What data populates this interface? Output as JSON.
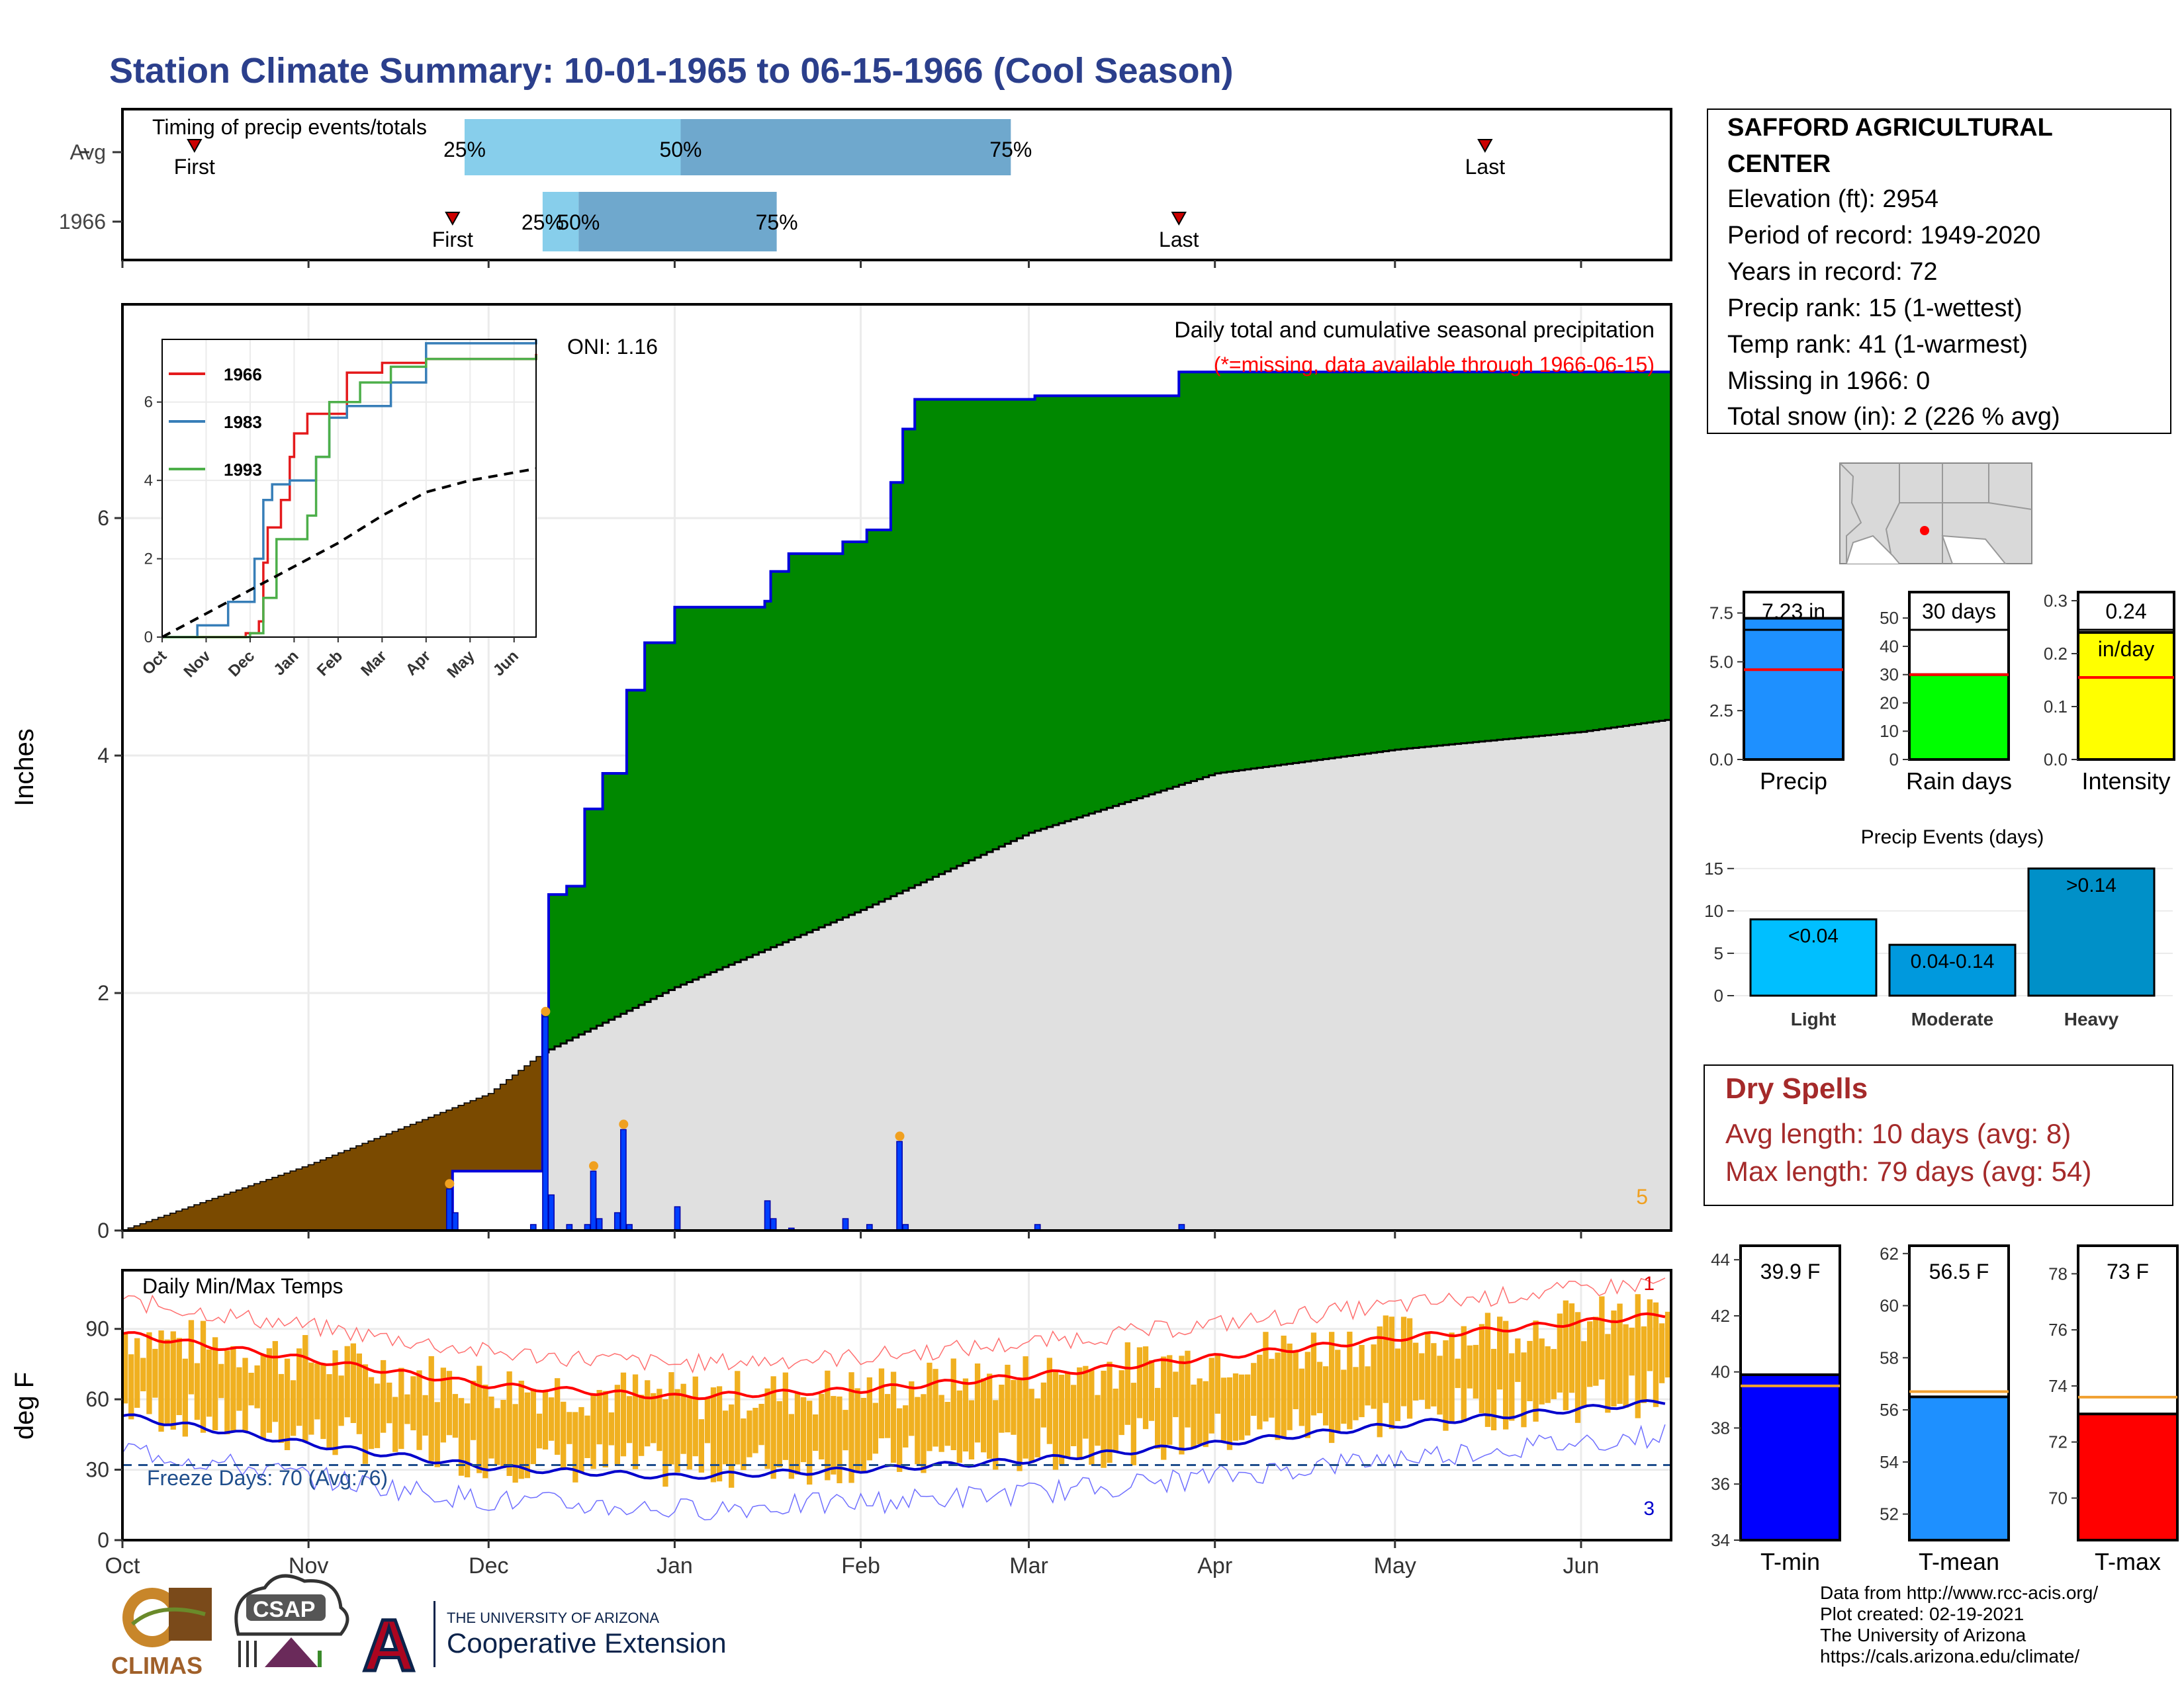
{
  "title": "Station Climate Summary: 10-01-1965 to 06-15-1966 (Cool Season)",
  "colors": {
    "title": "#2b3f8c",
    "green": "#008800",
    "brown": "#7a4a00",
    "gray": "#e0e0e0",
    "blue_line": "#0000dd",
    "light_blue": "#87ceeb",
    "mid_blue": "#6fa8cd",
    "orange": "#f0b020",
    "red": "#ff0000",
    "dry_red": "#a52a2a"
  },
  "timing": {
    "title": "Timing of precip events/totals",
    "rows": [
      {
        "label": "Avg",
        "first_label": "First",
        "last_label": "Last",
        "p25": "25%",
        "p50": "50%",
        "p75": "75%"
      },
      {
        "label": "1966",
        "first_label": "First",
        "last_label": "Last",
        "p25": "25%",
        "p50": "50%",
        "p75": "75%"
      }
    ]
  },
  "precip_panel": {
    "header": "Daily total and cumulative seasonal precipitation",
    "missing_note": "(*=missing, data available through 1966-06-15)",
    "oni": "ONI: 1.16",
    "ylabel": "Inches",
    "corner_count": "5",
    "yticks": [
      "0",
      "2",
      "4",
      "6"
    ]
  },
  "temp_panel": {
    "title": "Daily Min/Max Temps",
    "ylabel": "deg F",
    "freeze": "Freeze Days: 70 (Avg:76)",
    "count_top": "1",
    "count_bottom": "3",
    "yticks": [
      "0",
      "30",
      "60",
      "90"
    ]
  },
  "months": [
    "Oct",
    "Nov",
    "Dec",
    "Jan",
    "Feb",
    "Mar",
    "Apr",
    "May",
    "Jun"
  ],
  "station": {
    "name": "SAFFORD AGRICULTURAL CENTER",
    "elevation": "Elevation (ft): 2954",
    "period": "Period of record: 1949-2020",
    "years": "Years in record: 72",
    "precip_rank": "Precip rank: 15 (1-wettest)",
    "temp_rank": "Temp rank: 41 (1-warmest)",
    "missing": "Missing in 1966: 0",
    "snow": "Total snow (in): 2 (226 % avg)"
  },
  "inset": {
    "legend": [
      "1966",
      "1983",
      "1993"
    ],
    "months": [
      "Oct",
      "Nov",
      "Dec",
      "Jan",
      "Feb",
      "Mar",
      "Apr",
      "May",
      "Jun"
    ],
    "yticks": [
      "0",
      "2",
      "4",
      "6"
    ]
  },
  "bars": {
    "precip": {
      "label": "Precip",
      "value_text": "7.23 in",
      "yticks": [
        "0.0",
        "2.5",
        "5.0",
        "7.5"
      ]
    },
    "raindays": {
      "label": "Rain days",
      "value_text": "30 days",
      "yticks": [
        "0",
        "10",
        "20",
        "30",
        "40",
        "50"
      ]
    },
    "intensity": {
      "label": "Intensity",
      "value_text": "0.24",
      "unit_text": "in/day",
      "yticks": [
        "0.0",
        "0.1",
        "0.2",
        "0.3"
      ]
    }
  },
  "events": {
    "title": "Precip Events (days)",
    "categories": [
      "Light",
      "Moderate",
      "Heavy"
    ],
    "bar_labels": [
      "<0.04",
      "0.04-0.14",
      ">0.14"
    ],
    "yticks": [
      "0",
      "5",
      "10",
      "15"
    ]
  },
  "dry_spells": {
    "title": "Dry Spells",
    "avg": "Avg length: 10 days (avg: 8)",
    "max": "Max length: 79 days (avg: 54)"
  },
  "temp_bars": {
    "tmin": {
      "label": "T-min",
      "value_text": "39.9 F",
      "yticks": [
        "34",
        "36",
        "38",
        "40",
        "42",
        "44"
      ]
    },
    "tmean": {
      "label": "T-mean",
      "value_text": "56.5 F",
      "yticks": [
        "52",
        "54",
        "56",
        "58",
        "60",
        "62"
      ]
    },
    "tmax": {
      "label": "T-max",
      "value_text": "73 F",
      "yticks": [
        "70",
        "72",
        "74",
        "76",
        "78"
      ]
    }
  },
  "logos": {
    "climas": "CLIMAS",
    "csap": "CSAP",
    "ua_top": "THE UNIVERSITY OF ARIZONA",
    "ua_bottom": "Cooperative Extension",
    "ua_letter": "A"
  },
  "credits": [
    "Data from http://www.rcc-acis.org/",
    "Plot created: 02-19-2021",
    "The University of Arizona",
    "https://cals.arizona.edu/climate/"
  ],
  "chart_data": [
    {
      "type": "area",
      "name": "cumulative_precipitation",
      "x_unit": "date",
      "series": [
        {
          "name": "1966",
          "points": [
            [
              "1965-10-01",
              0
            ],
            [
              "1965-11-25",
              0.5
            ],
            [
              "1965-12-08",
              0.5
            ],
            [
              "1965-12-10",
              1.85
            ],
            [
              "1965-12-11",
              2.83
            ],
            [
              "1965-12-14",
              2.9
            ],
            [
              "1965-12-17",
              3.55
            ],
            [
              "1965-12-20",
              3.85
            ],
            [
              "1965-12-24",
              4.55
            ],
            [
              "1965-12-27",
              4.95
            ],
            [
              "1966-01-01",
              5.25
            ],
            [
              "1966-01-16",
              5.3
            ],
            [
              "1966-01-17",
              5.55
            ],
            [
              "1966-01-20",
              5.7
            ],
            [
              "1966-01-29",
              5.8
            ],
            [
              "1966-02-02",
              5.9
            ],
            [
              "1966-02-06",
              6.3
            ],
            [
              "1966-02-08",
              6.75
            ],
            [
              "1966-02-10",
              7.0
            ],
            [
              "1966-03-02",
              7.03
            ],
            [
              "1966-03-26",
              7.23
            ],
            [
              "1966-06-15",
              7.23
            ]
          ]
        },
        {
          "name": "Avg",
          "points": [
            [
              "1965-10-01",
              0
            ],
            [
              "1965-11-01",
              0.55
            ],
            [
              "1965-12-01",
              1.15
            ],
            [
              "1965-12-10",
              1.5
            ],
            [
              "1966-01-01",
              2.05
            ],
            [
              "1966-02-01",
              2.7
            ],
            [
              "1966-03-01",
              3.35
            ],
            [
              "1966-04-01",
              3.85
            ],
            [
              "1966-05-01",
              4.05
            ],
            [
              "1966-06-01",
              4.2
            ],
            [
              "1966-06-15",
              4.3
            ]
          ]
        }
      ],
      "daily_bars": [
        [
          "1965-11-24",
          0.35
        ],
        [
          "1965-11-25",
          0.15
        ],
        [
          "1965-12-08",
          0.05
        ],
        [
          "1965-12-10",
          1.8
        ],
        [
          "1965-12-11",
          0.3
        ],
        [
          "1965-12-14",
          0.05
        ],
        [
          "1965-12-17",
          0.05
        ],
        [
          "1965-12-18",
          0.5
        ],
        [
          "1965-12-19",
          0.1
        ],
        [
          "1965-12-22",
          0.15
        ],
        [
          "1965-12-23",
          0.85
        ],
        [
          "1965-12-24",
          0.05
        ],
        [
          "1966-01-01",
          0.2
        ],
        [
          "1966-01-16",
          0.25
        ],
        [
          "1966-01-17",
          0.1
        ],
        [
          "1966-01-20",
          0.02
        ],
        [
          "1966-01-29",
          0.1
        ],
        [
          "1966-02-02",
          0.05
        ],
        [
          "1966-02-07",
          0.75
        ],
        [
          "1966-02-08",
          0.05
        ],
        [
          "1966-03-02",
          0.05
        ],
        [
          "1966-03-26",
          0.05
        ]
      ],
      "ylim": [
        0,
        7.8
      ],
      "ylabel": "Inches"
    },
    {
      "type": "line",
      "name": "timing_of_precip",
      "rows": [
        {
          "label": "Avg",
          "first": "1965-10-13",
          "p25": "1965-11-27",
          "p50": "1966-01-02",
          "p75": "1966-02-26",
          "last": "1966-05-16"
        },
        {
          "label": "1966",
          "first": "1965-11-25",
          "p25": "1965-12-10",
          "p50": "1965-12-16",
          "p75": "1966-01-18",
          "last": "1966-03-26"
        }
      ]
    },
    {
      "type": "line",
      "name": "inset_cumulative_comparison",
      "series": [
        {
          "name": "1966",
          "color": "#e41a1c",
          "points": [
            [
              0,
              0
            ],
            [
              1.9,
              0.1
            ],
            [
              2.2,
              0.4
            ],
            [
              2.3,
              1.9
            ],
            [
              2.4,
              2.8
            ],
            [
              2.7,
              3.5
            ],
            [
              2.9,
              4.6
            ],
            [
              3.0,
              5.2
            ],
            [
              3.3,
              5.7
            ],
            [
              4.2,
              6.75
            ],
            [
              5.0,
              7.0
            ],
            [
              6.0,
              7.1
            ],
            [
              8.5,
              7.23
            ]
          ]
        },
        {
          "name": "1983",
          "color": "#377eb8",
          "points": [
            [
              0,
              0
            ],
            [
              0.8,
              0.3
            ],
            [
              1.5,
              0.9
            ],
            [
              2.1,
              2.0
            ],
            [
              2.3,
              3.5
            ],
            [
              2.5,
              3.9
            ],
            [
              2.9,
              4.0
            ],
            [
              3.5,
              4.6
            ],
            [
              3.8,
              5.6
            ],
            [
              4.2,
              5.9
            ],
            [
              5.2,
              6.5
            ],
            [
              6.0,
              7.5
            ],
            [
              8.5,
              7.6
            ]
          ]
        },
        {
          "name": "1993",
          "color": "#4daf4a",
          "points": [
            [
              0,
              0
            ],
            [
              2.0,
              0.1
            ],
            [
              2.3,
              1.0
            ],
            [
              2.6,
              2.5
            ],
            [
              3.3,
              3.1
            ],
            [
              3.5,
              4.6
            ],
            [
              3.8,
              6.0
            ],
            [
              4.5,
              6.5
            ],
            [
              5.2,
              6.9
            ],
            [
              6.0,
              7.1
            ],
            [
              8.5,
              7.2
            ]
          ]
        },
        {
          "name": "Avg",
          "color": "#000000",
          "dashed": true,
          "points": [
            [
              0,
              0
            ],
            [
              1,
              0.6
            ],
            [
              2,
              1.2
            ],
            [
              3,
              1.8
            ],
            [
              4,
              2.4
            ],
            [
              5,
              3.1
            ],
            [
              6,
              3.7
            ],
            [
              7,
              4.0
            ],
            [
              8,
              4.2
            ],
            [
              8.5,
              4.3
            ]
          ]
        }
      ],
      "ylim": [
        0,
        7.6
      ]
    },
    {
      "type": "line",
      "name": "daily_temperatures",
      "ylim": [
        0,
        115
      ],
      "avg_max": [
        [
          "1965-10-01",
          88
        ],
        [
          "1965-11-01",
          77
        ],
        [
          "1965-12-01",
          66
        ],
        [
          "1966-01-01",
          61
        ],
        [
          "1966-02-01",
          64
        ],
        [
          "1966-03-01",
          70
        ],
        [
          "1966-04-01",
          78
        ],
        [
          "1966-05-01",
          86
        ],
        [
          "1966-06-15",
          96
        ]
      ],
      "avg_min": [
        [
          "1965-10-01",
          53
        ],
        [
          "1965-11-01",
          41
        ],
        [
          "1965-12-01",
          31
        ],
        [
          "1966-01-01",
          27
        ],
        [
          "1966-02-01",
          30
        ],
        [
          "1966-03-01",
          34
        ],
        [
          "1966-04-01",
          41
        ],
        [
          "1966-05-01",
          49
        ],
        [
          "1966-06-15",
          59
        ]
      ],
      "freeze_line": 32
    },
    {
      "type": "bar",
      "name": "season_totals",
      "categories": [
        "Precip",
        "Rain days",
        "Intensity"
      ],
      "values": [
        7.23,
        30,
        0.24
      ],
      "averages": [
        4.6,
        30,
        0.155
      ]
    },
    {
      "type": "bar",
      "name": "precip_events",
      "categories": [
        "Light",
        "Moderate",
        "Heavy"
      ],
      "values": [
        9,
        6,
        15
      ],
      "ylim": [
        0,
        16
      ]
    },
    {
      "type": "bar",
      "name": "season_temperatures",
      "categories": [
        "T-min",
        "T-mean",
        "T-max"
      ],
      "values": [
        39.9,
        56.5,
        73
      ],
      "averages": [
        39.5,
        56.7,
        73.6
      ]
    }
  ]
}
